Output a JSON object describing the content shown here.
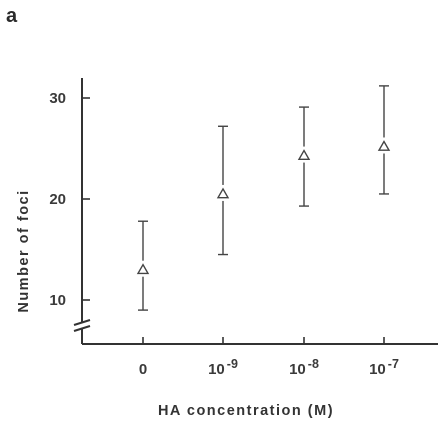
{
  "panel_label": "a",
  "chart_data": {
    "type": "scatter",
    "title": "",
    "xlabel": "HA concentration (M)",
    "ylabel": "Number of foci",
    "categories": [
      {
        "base": "0",
        "exp": ""
      },
      {
        "base": "10",
        "exp": "-9"
      },
      {
        "base": "10",
        "exp": "-8"
      },
      {
        "base": "10",
        "exp": "-7"
      }
    ],
    "values": [
      13,
      20.5,
      24.3,
      25.2
    ],
    "error_low": [
      9,
      14.5,
      19.3,
      20.5
    ],
    "error_high": [
      17.8,
      27.2,
      29.1,
      31.2
    ],
    "yticks": [
      10,
      20,
      30
    ],
    "ylim": [
      8,
      32
    ],
    "axis_break": true,
    "marker": "open-triangle",
    "grid": false,
    "legend": false
  }
}
